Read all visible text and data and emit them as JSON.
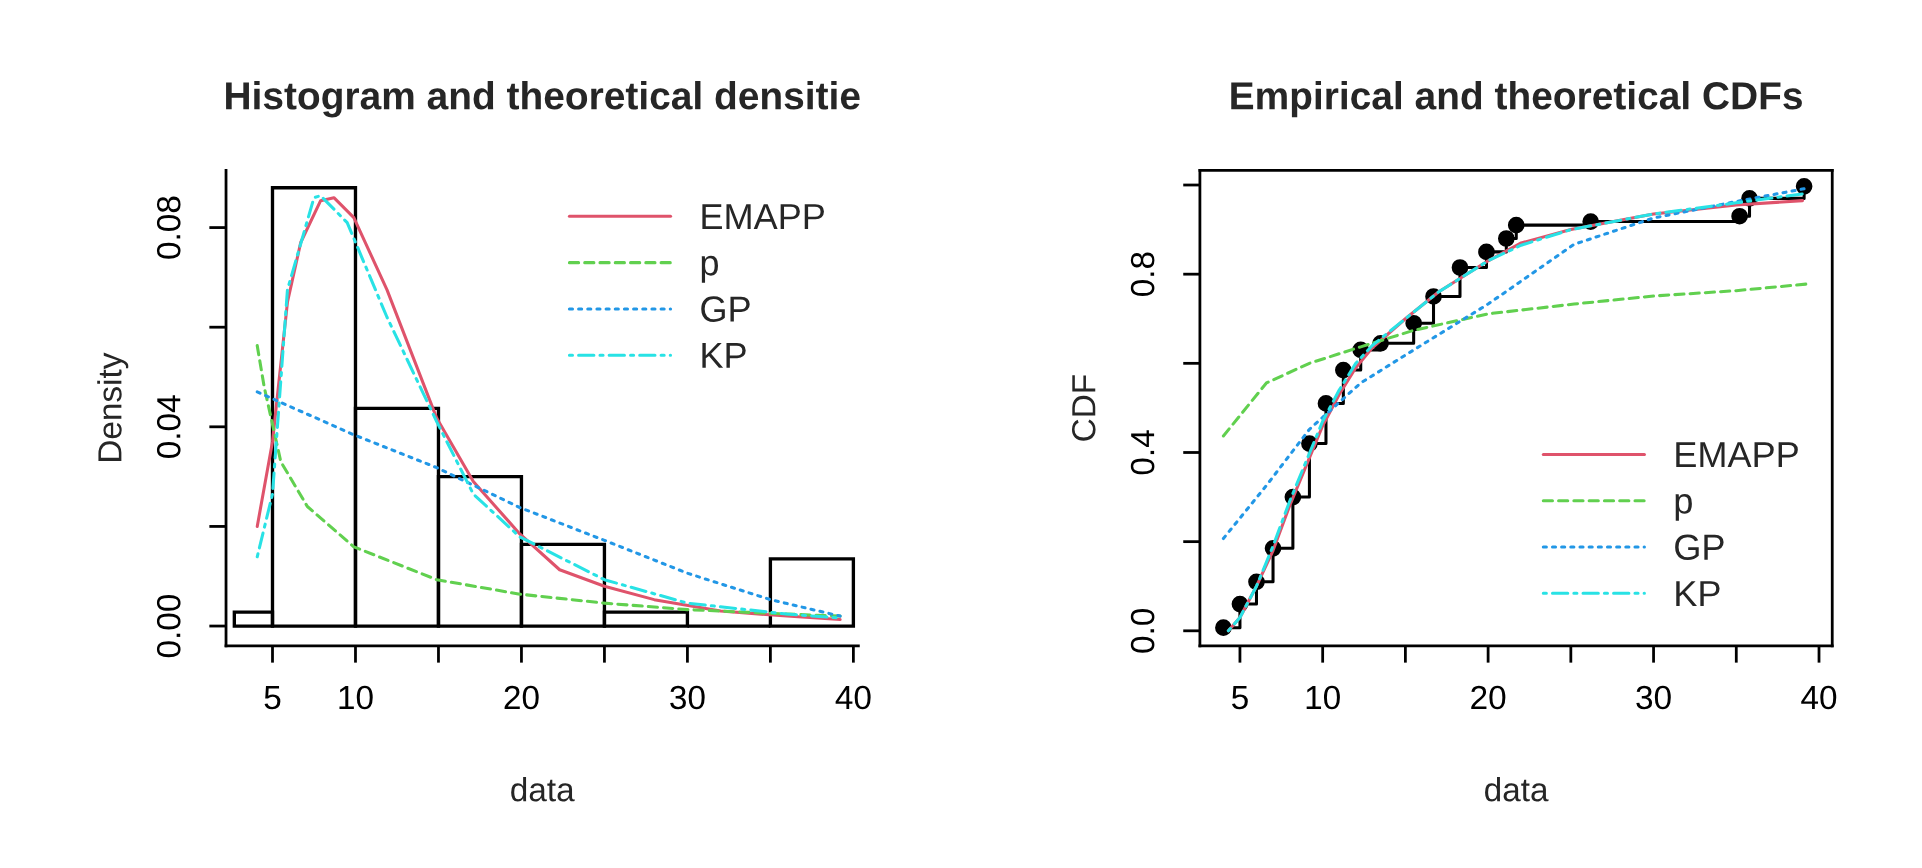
{
  "chart_data": [
    {
      "type": "histogram",
      "title": "Histogram and theoretical densitie",
      "xlabel": "data",
      "ylabel": "Density",
      "bins": [
        2.7,
        5,
        10,
        15,
        20,
        25,
        30,
        35,
        40
      ],
      "values": [
        0.0028,
        0.088,
        0.0437,
        0.03,
        0.0164,
        0.0028,
        0,
        0.0135
      ],
      "color": "#000000",
      "xlim": [
        2.2,
        40.3
      ],
      "xticks": [
        5,
        10,
        {
          "value": 15,
          "label": null
        },
        20,
        {
          "value": 25,
          "label": null
        },
        30,
        {
          "value": 35,
          "label": null
        },
        40
      ],
      "ylim": [
        -0.004,
        0.0915
      ],
      "yticks": [
        {
          "value": 0,
          "label": "0.00"
        },
        {
          "value": 0.02,
          "label": null
        },
        {
          "value": 0.04,
          "label": "0.04"
        },
        {
          "value": 0.06,
          "label": null
        },
        {
          "value": 0.08,
          "label": "0.08"
        }
      ],
      "legend": "top right",
      "series": [
        {
          "type": "line",
          "name": "EMAPP",
          "color": "#df536b",
          "line_style": "solid",
          "x": [
            4.08,
            5,
            5.9,
            6.7,
            7.9,
            8.7,
            9.9,
            11.9,
            14.9,
            17.1,
            19.9,
            22.3,
            25,
            28,
            32,
            36,
            39.2
          ],
          "values": [
            0.02,
            0.037,
            0.065,
            0.077,
            0.0854,
            0.086,
            0.082,
            0.0675,
            0.0417,
            0.029,
            0.0185,
            0.0113,
            0.008,
            0.0053,
            0.003,
            0.002,
            0.0013
          ]
        },
        {
          "type": "line",
          "name": "p",
          "color": "#61d04f",
          "line_style": "dashed",
          "x": [
            4.08,
            4.5,
            5.5,
            7.1,
            9.9,
            14.9,
            19.9,
            25,
            30,
            36,
            39.2
          ],
          "values": [
            0.0563,
            0.048,
            0.033,
            0.024,
            0.0159,
            0.0093,
            0.0064,
            0.0046,
            0.0033,
            0.0024,
            0.002
          ]
        },
        {
          "type": "line",
          "name": "GP",
          "color": "#2297e6",
          "line_style": "dotted",
          "x": [
            4.08,
            9.9,
            14.9,
            19.9,
            25,
            30,
            35,
            39.2
          ],
          "values": [
            0.047,
            0.0384,
            0.0318,
            0.0238,
            0.0172,
            0.0106,
            0.0053,
            0.002
          ]
        },
        {
          "type": "line",
          "name": "KP",
          "color": "#28e2e5",
          "line_style": "dashdot",
          "x": [
            4.08,
            5,
            5.9,
            7.5,
            7.9,
            9.5,
            11.9,
            14.9,
            17.1,
            19.9,
            25,
            30,
            36,
            39.2
          ],
          "values": [
            0.0139,
            0.0265,
            0.0675,
            0.086,
            0.0864,
            0.081,
            0.062,
            0.041,
            0.0265,
            0.0179,
            0.0093,
            0.0046,
            0.0024,
            0.0016
          ]
        }
      ]
    },
    {
      "type": "line",
      "title": "Empirical and theoretical CDFs",
      "xlabel": "data",
      "ylabel": "CDF",
      "xlim": [
        2.58,
        40.8
      ],
      "xticks": [
        5,
        10,
        {
          "value": 15,
          "label": null
        },
        20,
        {
          "value": 25,
          "label": null
        },
        30,
        {
          "value": 35,
          "label": null
        },
        40
      ],
      "ylim": [
        -0.034,
        1.033
      ],
      "yticks": [
        {
          "value": 0,
          "label": "0.0"
        },
        {
          "value": 0.2,
          "label": null
        },
        {
          "value": 0.4,
          "label": "0.4"
        },
        {
          "value": 0.6,
          "label": null
        },
        {
          "value": 0.8,
          "label": "0.8"
        },
        {
          "value": 1.0,
          "label": null
        }
      ],
      "legend": "bottom right",
      "series": [
        {
          "type": "step",
          "color": "#000000",
          "marker": "circle",
          "x": [
            4,
            5,
            6,
            7,
            8.2,
            9.2,
            10.2,
            11.25,
            12.3,
            13.5,
            15.5,
            16.7,
            18.3,
            19.9,
            21.1,
            21.7,
            26.2,
            35.2,
            35.8,
            39.1
          ],
          "values": [
            0.007,
            0.06,
            0.11,
            0.185,
            0.3,
            0.42,
            0.51,
            0.585,
            0.63,
            0.645,
            0.69,
            0.75,
            0.815,
            0.85,
            0.88,
            0.91,
            0.918,
            0.93,
            0.97,
            0.997
          ]
        },
        {
          "type": "line",
          "name": "EMAPP",
          "color": "#df536b",
          "line_style": "solid",
          "x": [
            4.3,
            5,
            6,
            7,
            8,
            9,
            10,
            11,
            12,
            13,
            15,
            17,
            20,
            22,
            25,
            30,
            35,
            39
          ],
          "values": [
            0.0,
            0.03,
            0.1,
            0.18,
            0.28,
            0.37,
            0.46,
            0.53,
            0.59,
            0.635,
            0.7,
            0.76,
            0.83,
            0.87,
            0.9,
            0.935,
            0.955,
            0.965
          ]
        },
        {
          "type": "line",
          "name": "p",
          "color": "#61d04f",
          "line_style": "dashed",
          "x": [
            4,
            6.6,
            9.2,
            12.3,
            15.5,
            20,
            25.2,
            30,
            35,
            39.3
          ],
          "values": [
            0.437,
            0.556,
            0.6,
            0.637,
            0.674,
            0.711,
            0.733,
            0.751,
            0.763,
            0.778
          ]
        },
        {
          "type": "line",
          "name": "GP",
          "color": "#2297e6",
          "line_style": "dotted",
          "x": [
            4,
            6.6,
            9.2,
            12.3,
            15.5,
            20,
            25.2,
            30,
            35,
            39.3
          ],
          "values": [
            0.207,
            0.326,
            0.452,
            0.556,
            0.63,
            0.733,
            0.867,
            0.926,
            0.963,
            0.993
          ]
        },
        {
          "type": "line",
          "name": "KP",
          "color": "#28e2e5",
          "line_style": "dashdot",
          "x": [
            4.3,
            5,
            6,
            7,
            8,
            9,
            10,
            11,
            12,
            13,
            15,
            17,
            20,
            22,
            25,
            30,
            35,
            39
          ],
          "values": [
            0.0,
            0.03,
            0.1,
            0.19,
            0.29,
            0.38,
            0.47,
            0.54,
            0.6,
            0.64,
            0.7,
            0.76,
            0.83,
            0.865,
            0.9,
            0.935,
            0.96,
            0.98
          ]
        }
      ]
    }
  ]
}
